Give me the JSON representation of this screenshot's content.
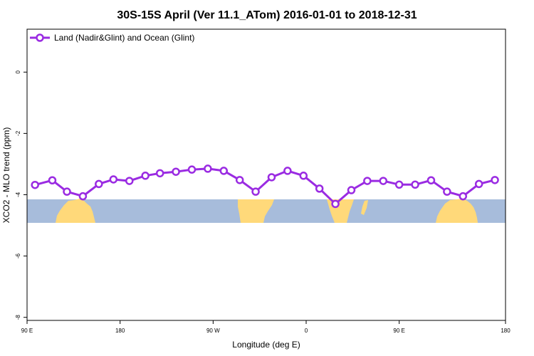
{
  "chart_data": {
    "type": "line",
    "title": "30S-15S April (Ver 11.1_ATom)   2016-01-01 to 2018-12-31",
    "xlabel": "Longitude (deg E)",
    "ylabel": "XCO2 - MLO trend (ppm)",
    "xlim": [
      90,
      450
    ],
    "ylim": [
      -8.1,
      1.4
    ],
    "x_ticks": [
      {
        "value": 90,
        "label": "90 E"
      },
      {
        "value": 160,
        "label": "180"
      },
      {
        "value": 230,
        "label": "90 W"
      },
      {
        "value": 300,
        "label": "0"
      },
      {
        "value": 370,
        "label": "90 E"
      },
      {
        "value": 450,
        "label": "180"
      }
    ],
    "y_ticks": [
      {
        "value": 0,
        "label": "0"
      },
      {
        "value": -2,
        "label": "-2"
      },
      {
        "value": -4,
        "label": "-4"
      },
      {
        "value": -6,
        "label": "-6"
      },
      {
        "value": -8,
        "label": "-8"
      }
    ],
    "grid": false,
    "legend_position": "top-left",
    "series": [
      {
        "name": "Land (Nadir&Glint) and Ocean (Glint)",
        "color": "#9a2be2",
        "x": [
          96,
          109,
          120,
          132,
          144,
          155,
          167,
          179,
          190,
          202,
          214,
          226,
          238,
          250,
          262,
          274,
          286,
          298,
          310,
          322,
          334,
          346,
          358,
          370,
          382,
          394,
          406,
          418,
          430,
          442
        ],
        "y": [
          -3.68,
          -3.53,
          -3.9,
          -4.05,
          -3.65,
          -3.5,
          -3.55,
          -3.38,
          -3.3,
          -3.25,
          -3.18,
          -3.15,
          -3.22,
          -3.52,
          -3.9,
          -3.43,
          -3.22,
          -3.38,
          -3.8,
          -4.3,
          -3.85,
          -3.55,
          -3.55,
          -3.67,
          -3.67,
          -3.53,
          -3.9,
          -4.05,
          -3.65,
          -3.52
        ]
      }
    ]
  }
}
